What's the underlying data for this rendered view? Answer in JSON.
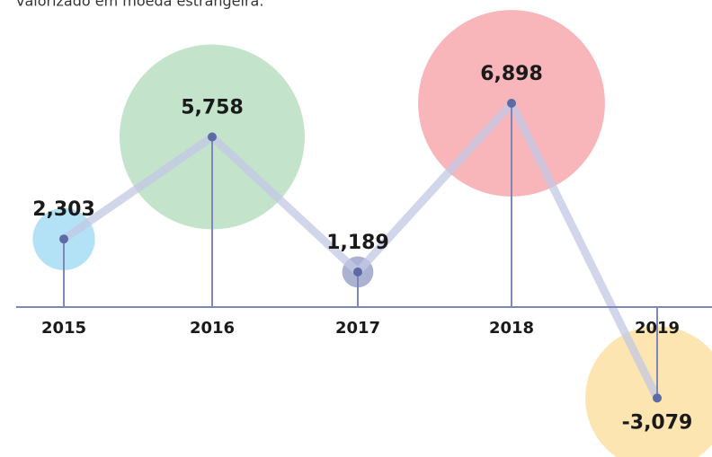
{
  "chart_data": {
    "type": "bubble-line",
    "subtitle": "valorizado em moeda estrangeira.",
    "categories": [
      "2015",
      "2016",
      "2017",
      "2018",
      "2019"
    ],
    "values": [
      2303,
      5758,
      1189,
      6898,
      -3079
    ],
    "value_labels": [
      "2,303",
      "5,758",
      "1,189",
      "6,898",
      "-3,079"
    ],
    "sizes": [
      12,
      106,
      3,
      108,
      64
    ],
    "colors": [
      "#b3e1f6",
      "#c3e4ca",
      "#abb2d2",
      "#f8b5ba",
      "#fde5b1"
    ],
    "line_color": "#c3c8e4",
    "axis_color": "#7d87b8",
    "point_color": "#5d6aa6"
  }
}
